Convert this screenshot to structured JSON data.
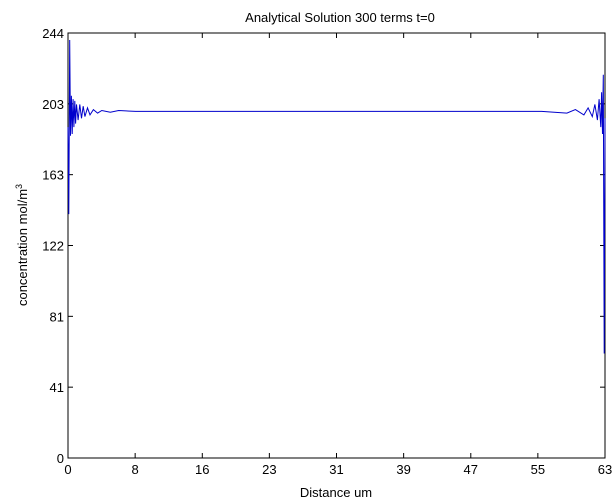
{
  "chart_data": {
    "type": "line",
    "title": "Analytical Solution 300 terms t=0",
    "xlabel": "Distance um",
    "ylabel_base": "concentration mol/m",
    "ylabel_sup": "3",
    "xlim": [
      0,
      63.5
    ],
    "ylim": [
      0,
      244
    ],
    "xticks": [
      "0",
      "8",
      "16",
      "23",
      "31",
      "39",
      "47",
      "55",
      "63"
    ],
    "xtick_values": [
      0,
      7.94,
      15.88,
      23.81,
      31.75,
      39.69,
      47.63,
      55.56,
      63.5
    ],
    "yticks": [
      "0",
      "41",
      "81",
      "122",
      "163",
      "203",
      "244"
    ],
    "ytick_values": [
      0,
      40.67,
      81.33,
      122,
      162.67,
      203.33,
      244
    ],
    "grid": false,
    "legend": "none",
    "series": [
      {
        "color": "#0000cc",
        "x": [
          0,
          0.1,
          0.2,
          0.3,
          0.4,
          0.5,
          0.6,
          0.7,
          0.8,
          0.9,
          1.0,
          1.2,
          1.4,
          1.6,
          1.8,
          2.0,
          2.3,
          2.6,
          3.0,
          3.5,
          4.0,
          5.0,
          6.0,
          8.0,
          16.0,
          24.0,
          31.75,
          40.0,
          48.0,
          56.0,
          59.0,
          60.0,
          61.0,
          61.5,
          62.0,
          62.3,
          62.6,
          62.8,
          63.0,
          63.1,
          63.2,
          63.3,
          63.4,
          63.5
        ],
        "y": [
          190,
          140,
          240,
          185,
          208,
          186,
          206,
          190,
          205,
          192,
          203,
          194,
          203,
          195,
          202,
          196,
          201,
          197,
          200,
          198,
          199.5,
          198.5,
          199.5,
          199,
          199,
          199,
          199,
          199,
          199,
          199,
          198,
          200,
          197,
          201,
          196,
          203,
          194,
          206,
          190,
          210,
          186,
          220,
          60,
          195
        ]
      }
    ]
  }
}
